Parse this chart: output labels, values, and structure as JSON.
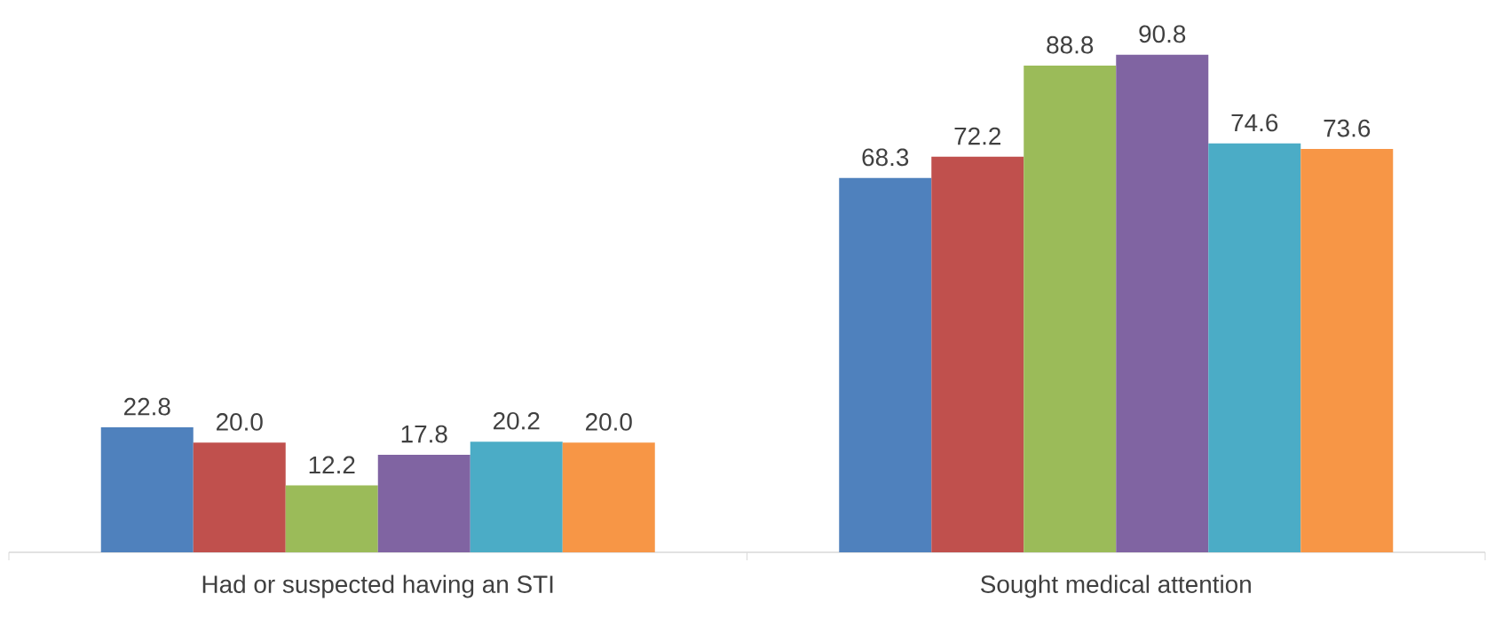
{
  "chart_data": {
    "type": "bar",
    "categories": [
      "Had or suspected having an STI",
      "Sought medical attention"
    ],
    "series": [
      {
        "color": "#4f81bd",
        "values": [
          22.8,
          68.3
        ],
        "value_labels": [
          "22.8",
          "68.3"
        ]
      },
      {
        "color": "#c0504d",
        "values": [
          20.0,
          72.2
        ],
        "value_labels": [
          "20.0",
          "72.2"
        ]
      },
      {
        "color": "#9bbb59",
        "values": [
          12.2,
          88.8
        ],
        "value_labels": [
          "12.2",
          "88.8"
        ]
      },
      {
        "color": "#8064a2",
        "values": [
          17.8,
          90.8
        ],
        "value_labels": [
          "17.8",
          "90.8"
        ]
      },
      {
        "color": "#4bacc6",
        "values": [
          20.2,
          74.6
        ],
        "value_labels": [
          "20.2",
          "74.6"
        ]
      },
      {
        "color": "#f79646",
        "values": [
          20.0,
          73.6
        ],
        "value_labels": [
          "20.0",
          "73.6"
        ]
      }
    ]
  }
}
